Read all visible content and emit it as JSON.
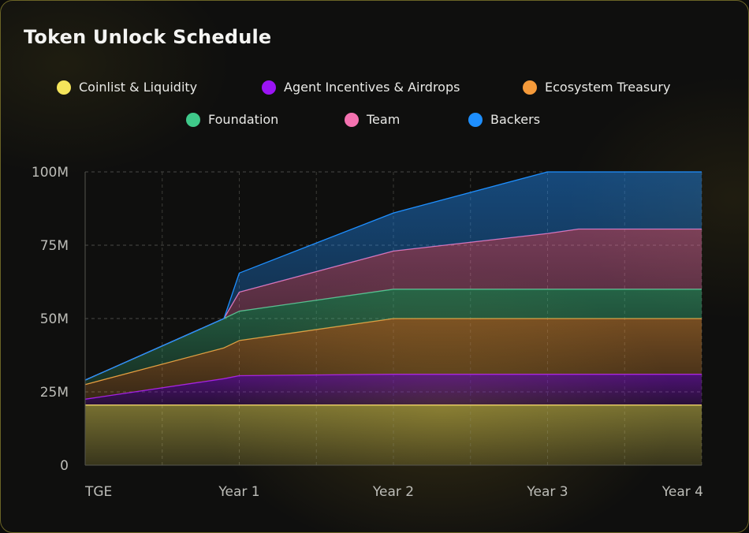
{
  "chart_data": {
    "type": "area",
    "stacked": true,
    "title": "Token Unlock Schedule",
    "x": [
      0,
      0.9,
      1,
      2,
      3,
      3.2,
      4
    ],
    "x_ticks": [
      0,
      1,
      2,
      3,
      4
    ],
    "x_tick_labels": [
      "TGE",
      "Year 1",
      "Year 2",
      "Year 3",
      "Year 4"
    ],
    "y_ticks": [
      0,
      25,
      50,
      75,
      100
    ],
    "y_tick_labels": [
      "0",
      "25M",
      "50M",
      "75M",
      "100M"
    ],
    "ylim": [
      0,
      100
    ],
    "xlim": [
      0,
      4
    ],
    "units": "M tokens",
    "grid": true,
    "legend_position": "top",
    "series": [
      {
        "name": "Coinlist & Liquidity",
        "color": "#f5e55b",
        "values": [
          20.5,
          20.5,
          20.5,
          20.5,
          20.5,
          20.5,
          20.5
        ]
      },
      {
        "name": "Agent Incentives & Airdrops",
        "color": "#9b14f5",
        "values": [
          2,
          9,
          10,
          10.5,
          10.5,
          10.5,
          10.5
        ]
      },
      {
        "name": "Ecosystem Treasury",
        "color": "#f59a3a",
        "values": [
          5,
          10.5,
          12,
          19,
          19,
          19,
          19
        ]
      },
      {
        "name": "Foundation",
        "color": "#3fc98a",
        "values": [
          1.5,
          10,
          10,
          10,
          10,
          10,
          10
        ]
      },
      {
        "name": "Team",
        "color": "#f472b0",
        "values": [
          0,
          0,
          6.5,
          13,
          19,
          20.5,
          20.5
        ]
      },
      {
        "name": "Backers",
        "color": "#1e8fff",
        "values": [
          0,
          0,
          6.5,
          13,
          21,
          19.5,
          19.5
        ]
      }
    ]
  }
}
